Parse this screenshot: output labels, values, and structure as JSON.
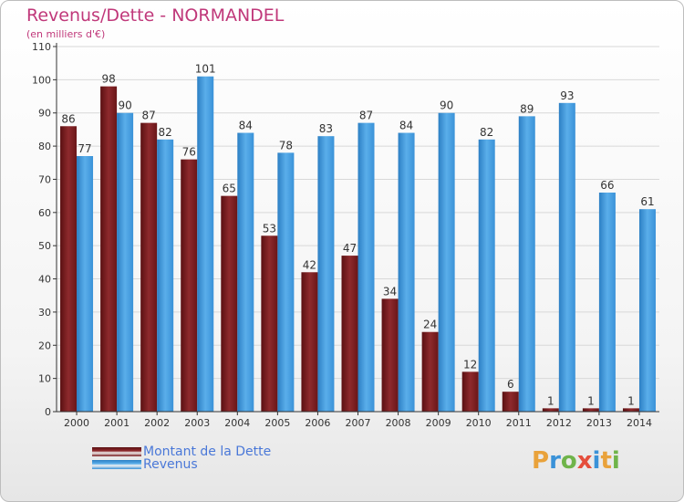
{
  "title": "Revenus/Dette - NORMANDEL",
  "subtitle": "(en milliers d'€)",
  "colors": {
    "dette": "#7a1f22",
    "revenus": "#3a92d8",
    "grid": "#d8d8d8",
    "axis": "#333333",
    "title": "#c0387a",
    "legend_text": "#4a78d8"
  },
  "legend": [
    {
      "label": "Montant de la Dette",
      "color": "#7a1f22"
    },
    {
      "label": "Revenus",
      "color": "#3a92d8"
    }
  ],
  "logo": {
    "text": "Proxiti",
    "letters": [
      {
        "ch": "P",
        "color": "#e9a23b"
      },
      {
        "ch": "r",
        "color": "#3a92d8"
      },
      {
        "ch": "o",
        "color": "#6fb44a"
      },
      {
        "ch": "x",
        "color": "#e54e3c"
      },
      {
        "ch": "i",
        "color": "#3a92d8"
      },
      {
        "ch": "t",
        "color": "#e9a23b"
      },
      {
        "ch": "i",
        "color": "#6fb44a"
      }
    ]
  },
  "chart_data": {
    "type": "bar",
    "categories": [
      "2000",
      "2001",
      "2002",
      "2003",
      "2004",
      "2005",
      "2006",
      "2007",
      "2008",
      "2009",
      "2010",
      "2011",
      "2012",
      "2013",
      "2014"
    ],
    "series": [
      {
        "name": "Montant de la Dette",
        "values": [
          86,
          98,
          87,
          76,
          65,
          53,
          42,
          47,
          34,
          24,
          12,
          6,
          1,
          1,
          1
        ]
      },
      {
        "name": "Revenus",
        "values": [
          77,
          90,
          82,
          101,
          84,
          78,
          83,
          87,
          84,
          90,
          82,
          89,
          93,
          66,
          61
        ]
      }
    ],
    "yticks": [
      0,
      10,
      20,
      30,
      40,
      50,
      60,
      70,
      80,
      90,
      100,
      110
    ],
    "ylim": [
      0,
      110
    ],
    "grid": true,
    "legend_position": "bottom-left"
  }
}
